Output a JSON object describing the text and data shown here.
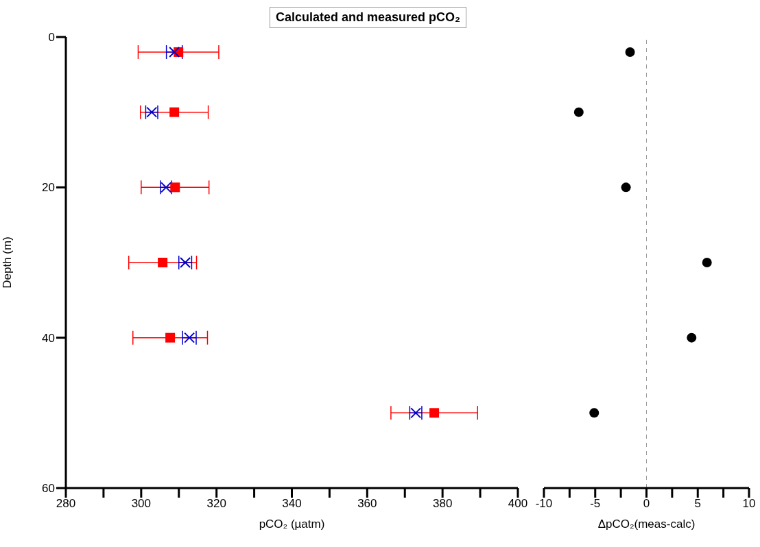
{
  "chart_data": [
    {
      "type": "scatter",
      "title": "Calculated and measured pCO₂",
      "xlabel": "pCO₂ (µatm)",
      "ylabel": "Depth (m)",
      "xlim": [
        280,
        400
      ],
      "xticks": [
        280,
        {
          "value": 290,
          "label": null
        },
        300,
        {
          "value": 310,
          "label": null
        },
        320,
        {
          "value": 330,
          "label": null
        },
        340,
        {
          "value": 350,
          "label": null
        },
        360,
        {
          "value": 370,
          "label": null
        },
        380,
        {
          "value": 390,
          "label": null
        },
        400
      ],
      "ylim": [
        60,
        0
      ],
      "yticks": [
        0,
        20,
        40,
        60
      ],
      "series": [
        {
          "color": "#ff0000",
          "marker": "square",
          "x": [
            309.9,
            308.8,
            309.0,
            305.7,
            307.7,
            377.8
          ],
          "values": [
            2,
            10,
            20,
            30,
            40,
            50
          ],
          "xerrors": [
            10.7,
            9,
            9,
            9,
            9.9,
            11.5
          ]
        },
        {
          "color": "#0000cc",
          "marker": "cross",
          "x": [
            308.8,
            302.8,
            306.6,
            311.7,
            312.8,
            372.9
          ],
          "values": [
            2,
            10,
            20,
            30,
            40,
            50
          ],
          "xerrors": [
            2.1,
            1.6,
            1.5,
            1.7,
            1.8,
            1.6
          ]
        }
      ]
    },
    {
      "type": "scatter",
      "xlabel": "ΔpCO₂(meas-calc)",
      "tick_labels": "x",
      "xlim": [
        -10,
        10
      ],
      "xticks": [
        -10,
        {
          "value": -7.5,
          "label": null
        },
        -5,
        {
          "value": -2.5,
          "label": null
        },
        0,
        {
          "value": 2.5,
          "label": null
        },
        5,
        {
          "value": 7.5,
          "label": null
        },
        10
      ],
      "ylim": [
        60,
        0
      ],
      "yticks": [
        0,
        20,
        40,
        60
      ],
      "series": [
        {
          "color": "#000000",
          "marker": "circle",
          "x": [
            -1.6,
            -6.6,
            -2.0,
            5.9,
            4.4,
            -5.1
          ],
          "values": [
            2,
            10,
            20,
            30,
            40,
            50
          ]
        }
      ],
      "ref_lines": [
        {
          "axis": "x",
          "value": 0,
          "color": "#999999",
          "line_style": "dashed"
        }
      ]
    }
  ]
}
